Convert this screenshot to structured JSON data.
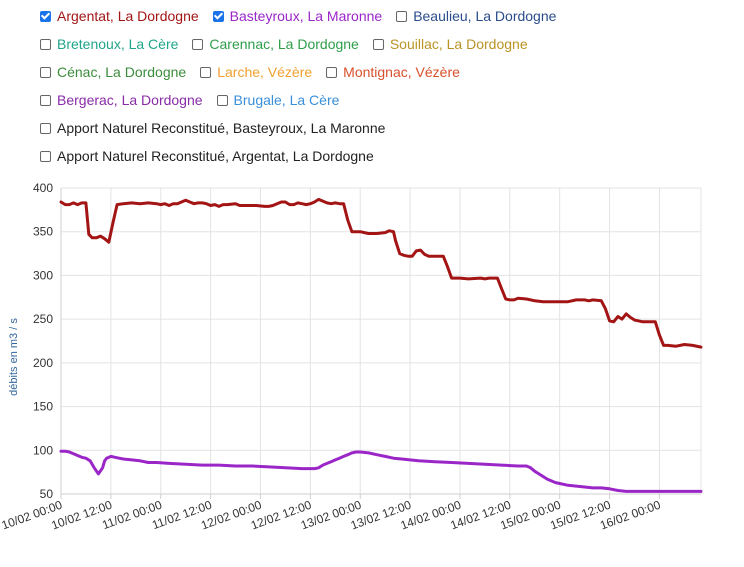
{
  "legend": [
    [
      {
        "label": "Argentat, La Dordogne",
        "checked": true,
        "color": "#a31515"
      },
      {
        "label": "Basteyroux, La Maronne",
        "checked": true,
        "color": "#9b26c8"
      },
      {
        "label": "Beaulieu, La Dordogne",
        "checked": false,
        "color": "#2b4c8c"
      }
    ],
    [
      {
        "label": "Bretenoux, La Cère",
        "checked": false,
        "color": "#1fa58a"
      },
      {
        "label": "Carennac, La Dordogne",
        "checked": false,
        "color": "#2e9e4a"
      },
      {
        "label": "Souillac, La Dordogne",
        "checked": false,
        "color": "#b99425"
      }
    ],
    [
      {
        "label": "Cénac, La Dordogne",
        "checked": false,
        "color": "#3b8c3b"
      },
      {
        "label": "Larche, Vézère",
        "checked": false,
        "color": "#f0a030"
      },
      {
        "label": "Montignac, Vézère",
        "checked": false,
        "color": "#d9502a"
      }
    ],
    [
      {
        "label": "Bergerac, La Dordogne",
        "checked": false,
        "color": "#8a2ca8"
      },
      {
        "label": "Brugale, La Cère",
        "checked": false,
        "color": "#3a8fd9"
      }
    ],
    [
      {
        "label": "Apport Naturel Reconstitué, Basteyroux, La Maronne",
        "checked": false,
        "color": "#222222"
      }
    ],
    [
      {
        "label": "Apport Naturel Reconstitué, Argentat, La Dordogne",
        "checked": false,
        "color": "#222222"
      }
    ]
  ],
  "chart_data": {
    "type": "line",
    "ylabel": "débits en m3 / s",
    "xlabel": "",
    "ylim": [
      50,
      400
    ],
    "yticks": [
      50,
      100,
      150,
      200,
      250,
      300,
      350,
      400
    ],
    "xlim_hours": [
      0,
      154
    ],
    "xticks": [
      {
        "h": 0,
        "label": "10/02 00:00"
      },
      {
        "h": 12,
        "label": "10/02 12:00"
      },
      {
        "h": 24,
        "label": "11/02 00:00"
      },
      {
        "h": 36,
        "label": "11/02 12:00"
      },
      {
        "h": 48,
        "label": "12/02 00:00"
      },
      {
        "h": 60,
        "label": "12/02 12:00"
      },
      {
        "h": 72,
        "label": "13/02 00:00"
      },
      {
        "h": 84,
        "label": "13/02 12:00"
      },
      {
        "h": 96,
        "label": "14/02 00:00"
      },
      {
        "h": 108,
        "label": "14/02 12:00"
      },
      {
        "h": 120,
        "label": "15/02 00:00"
      },
      {
        "h": 132,
        "label": "15/02 12:00"
      },
      {
        "h": 144,
        "label": "16/02 00:00"
      }
    ],
    "grid": true,
    "series": [
      {
        "name": "Argentat, La Dordogne",
        "color": "#a31515",
        "points": [
          [
            0,
            384
          ],
          [
            1,
            381
          ],
          [
            2,
            381
          ],
          [
            3,
            383
          ],
          [
            4,
            381
          ],
          [
            5,
            383
          ],
          [
            6,
            383
          ],
          [
            6.7,
            347
          ],
          [
            7.5,
            343
          ],
          [
            8.5,
            343
          ],
          [
            9.5,
            345
          ],
          [
            10.5,
            342
          ],
          [
            11.5,
            338
          ],
          [
            12.5,
            360
          ],
          [
            13.5,
            381
          ],
          [
            15,
            382
          ],
          [
            17,
            383
          ],
          [
            19,
            382
          ],
          [
            21,
            383
          ],
          [
            23,
            382
          ],
          [
            24,
            381
          ],
          [
            25,
            382
          ],
          [
            26,
            380
          ],
          [
            27,
            382
          ],
          [
            28,
            382
          ],
          [
            29,
            384
          ],
          [
            30,
            386
          ],
          [
            31,
            384
          ],
          [
            32,
            382
          ],
          [
            33,
            383
          ],
          [
            34,
            383
          ],
          [
            35,
            382
          ],
          [
            36,
            380
          ],
          [
            37,
            381
          ],
          [
            38,
            379
          ],
          [
            39,
            381
          ],
          [
            40,
            381
          ],
          [
            42,
            382
          ],
          [
            43,
            380
          ],
          [
            45,
            380
          ],
          [
            47,
            380
          ],
          [
            49,
            379
          ],
          [
            50,
            379
          ],
          [
            51,
            380
          ],
          [
            52,
            382
          ],
          [
            53,
            384
          ],
          [
            54,
            384
          ],
          [
            55,
            381
          ],
          [
            56,
            381
          ],
          [
            57,
            383
          ],
          [
            58,
            382
          ],
          [
            59,
            381
          ],
          [
            60,
            382
          ],
          [
            61,
            384
          ],
          [
            62,
            387
          ],
          [
            63,
            385
          ],
          [
            64,
            383
          ],
          [
            65,
            382
          ],
          [
            66,
            383
          ],
          [
            67,
            382
          ],
          [
            68,
            382
          ],
          [
            69,
            363
          ],
          [
            70,
            350
          ],
          [
            71,
            350
          ],
          [
            72,
            350
          ],
          [
            73,
            349
          ],
          [
            74,
            348
          ],
          [
            76,
            348
          ],
          [
            78,
            349
          ],
          [
            79,
            351
          ],
          [
            80,
            350
          ],
          [
            80.5,
            340
          ],
          [
            81.5,
            325
          ],
          [
            82.5,
            323
          ],
          [
            83.5,
            322
          ],
          [
            84.5,
            322
          ],
          [
            85.5,
            328
          ],
          [
            86.5,
            329
          ],
          [
            87.5,
            324
          ],
          [
            88.5,
            322
          ],
          [
            92,
            322
          ],
          [
            93,
            310
          ],
          [
            94,
            297
          ],
          [
            96,
            297
          ],
          [
            98,
            296
          ],
          [
            101,
            297
          ],
          [
            102,
            296
          ],
          [
            103,
            297
          ],
          [
            104,
            297
          ],
          [
            105,
            297
          ],
          [
            106,
            285
          ],
          [
            107,
            273
          ],
          [
            108,
            272
          ],
          [
            109,
            272
          ],
          [
            110,
            274
          ],
          [
            112,
            273
          ],
          [
            114,
            271
          ],
          [
            116,
            270
          ],
          [
            118,
            270
          ],
          [
            120,
            270
          ],
          [
            122,
            270
          ],
          [
            124,
            272
          ],
          [
            126,
            272
          ],
          [
            127,
            271
          ],
          [
            128,
            272
          ],
          [
            130,
            271
          ],
          [
            131,
            262
          ],
          [
            132,
            248
          ],
          [
            133,
            247
          ],
          [
            134,
            253
          ],
          [
            135,
            250
          ],
          [
            136,
            256
          ],
          [
            137,
            252
          ],
          [
            138,
            249
          ],
          [
            140,
            247
          ],
          [
            142,
            247
          ],
          [
            143,
            247
          ],
          [
            144,
            232
          ],
          [
            145,
            220
          ],
          [
            146,
            220
          ],
          [
            148,
            219
          ],
          [
            150,
            221
          ],
          [
            152,
            220
          ],
          [
            154,
            218
          ]
        ]
      },
      {
        "name": "Basteyroux, La Maronne",
        "color": "#9b26c8",
        "points": [
          [
            0,
            99
          ],
          [
            1,
            99
          ],
          [
            2,
            98
          ],
          [
            3,
            96
          ],
          [
            4,
            94
          ],
          [
            5,
            92
          ],
          [
            6,
            91
          ],
          [
            7,
            88
          ],
          [
            8,
            80
          ],
          [
            9,
            73
          ],
          [
            10,
            80
          ],
          [
            10.5,
            88
          ],
          [
            11,
            91
          ],
          [
            12,
            93
          ],
          [
            13,
            92
          ],
          [
            14,
            91
          ],
          [
            15,
            90
          ],
          [
            17,
            89
          ],
          [
            19,
            88
          ],
          [
            21,
            86
          ],
          [
            23,
            86
          ],
          [
            26,
            85
          ],
          [
            30,
            84
          ],
          [
            34,
            83
          ],
          [
            38,
            83
          ],
          [
            42,
            82
          ],
          [
            46,
            82
          ],
          [
            50,
            81
          ],
          [
            54,
            80
          ],
          [
            58,
            79
          ],
          [
            61,
            79
          ],
          [
            62,
            80
          ],
          [
            63,
            83
          ],
          [
            64,
            85
          ],
          [
            65,
            87
          ],
          [
            66,
            89
          ],
          [
            67,
            91
          ],
          [
            68,
            93
          ],
          [
            69,
            95
          ],
          [
            70,
            97
          ],
          [
            71,
            98
          ],
          [
            72,
            98
          ],
          [
            74,
            97
          ],
          [
            76,
            95
          ],
          [
            78,
            93
          ],
          [
            80,
            91
          ],
          [
            82,
            90
          ],
          [
            84,
            89
          ],
          [
            86,
            88
          ],
          [
            90,
            87
          ],
          [
            94,
            86
          ],
          [
            98,
            85
          ],
          [
            102,
            84
          ],
          [
            106,
            83
          ],
          [
            110,
            82
          ],
          [
            112,
            82
          ],
          [
            113,
            80
          ],
          [
            114,
            76
          ],
          [
            115,
            73
          ],
          [
            116,
            70
          ],
          [
            117,
            67
          ],
          [
            118,
            65
          ],
          [
            119,
            63
          ],
          [
            120,
            62
          ],
          [
            122,
            60
          ],
          [
            124,
            59
          ],
          [
            126,
            58
          ],
          [
            128,
            57
          ],
          [
            130,
            57
          ],
          [
            132,
            56
          ],
          [
            134,
            54
          ],
          [
            136,
            53
          ],
          [
            140,
            53
          ],
          [
            144,
            53
          ],
          [
            148,
            53
          ],
          [
            152,
            53
          ],
          [
            154,
            53
          ]
        ]
      }
    ]
  }
}
